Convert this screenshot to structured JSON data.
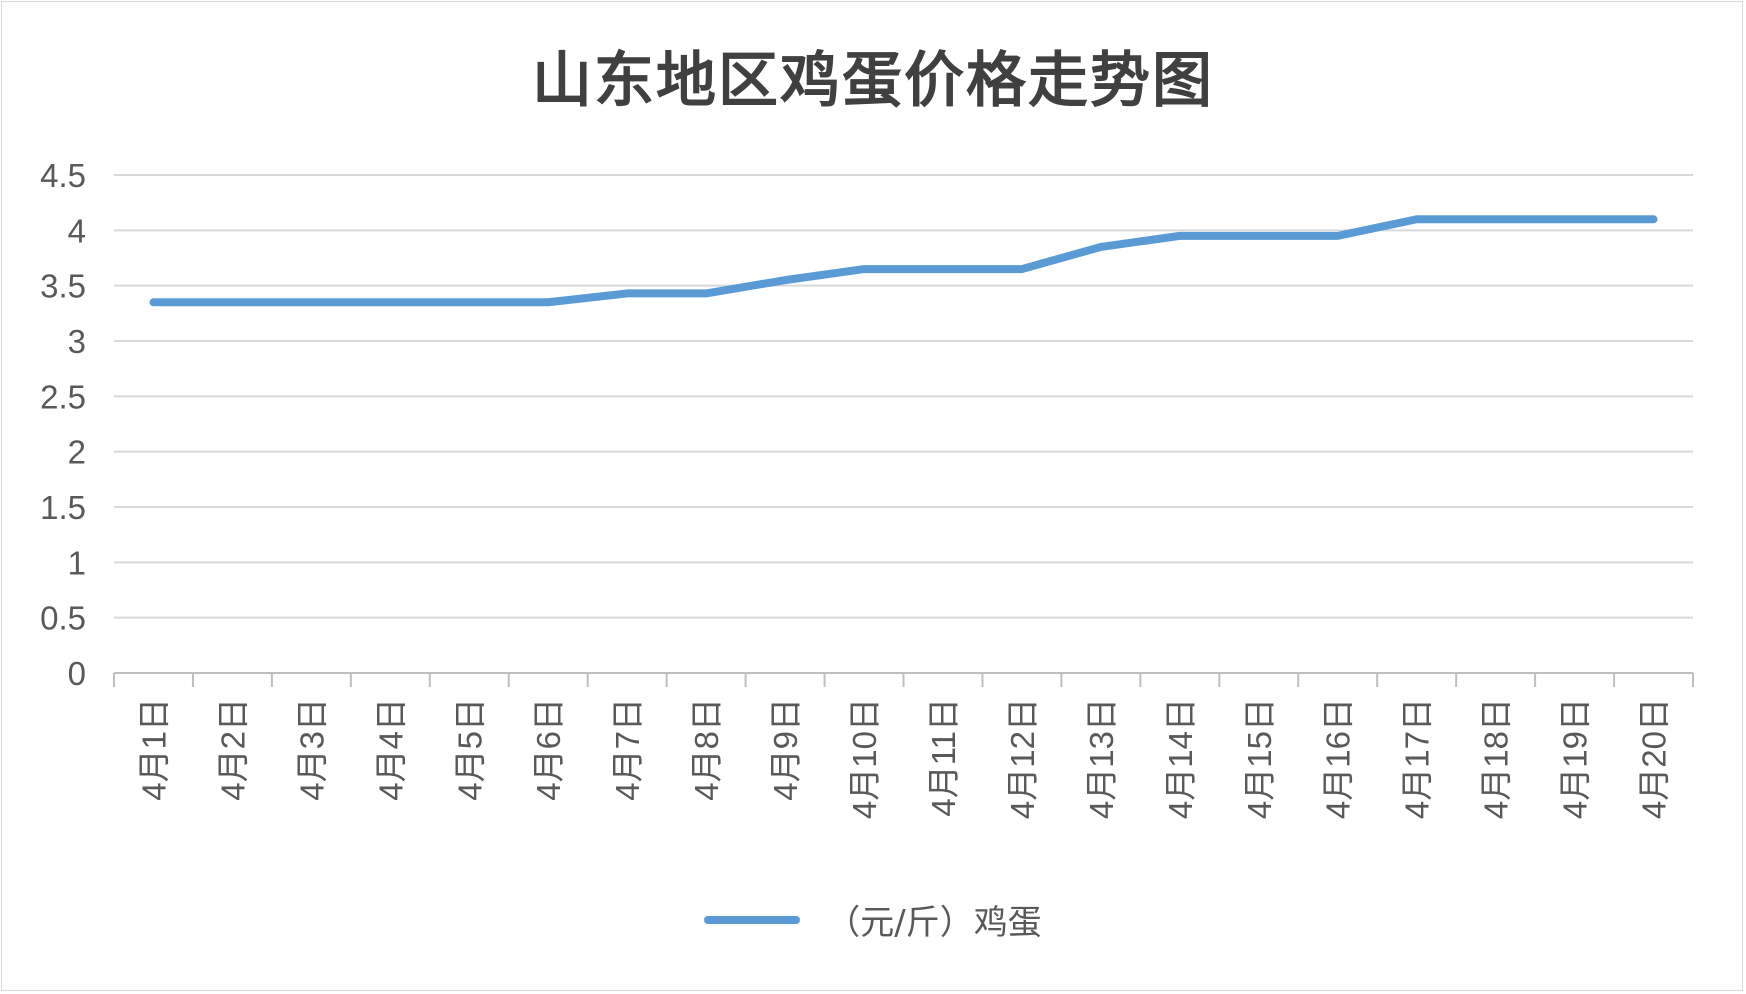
{
  "chart_data": {
    "type": "line",
    "title": "山东地区鸡蛋价格走势图",
    "categories": [
      "4月1日",
      "4月2日",
      "4月3日",
      "4月4日",
      "4月5日",
      "4月6日",
      "4月7日",
      "4月8日",
      "4月9日",
      "4月10日",
      "4月11日",
      "4月12日",
      "4月13日",
      "4月14日",
      "4月15日",
      "4月16日",
      "4月17日",
      "4月18日",
      "4月19日",
      "4月20日"
    ],
    "series": [
      {
        "name": "（元/斤）鸡蛋",
        "color": "#5b9bd5",
        "values": [
          3.35,
          3.35,
          3.35,
          3.35,
          3.35,
          3.35,
          3.43,
          3.43,
          3.55,
          3.65,
          3.65,
          3.65,
          3.85,
          3.95,
          3.95,
          3.95,
          4.1,
          4.1,
          4.1,
          4.1
        ]
      }
    ],
    "ylim": [
      0,
      4.5
    ],
    "yticks": [
      "0",
      "0.5",
      "1",
      "1.5",
      "2",
      "2.5",
      "3",
      "3.5",
      "4",
      "4.5"
    ],
    "grid": true,
    "legend_position": "bottom"
  }
}
